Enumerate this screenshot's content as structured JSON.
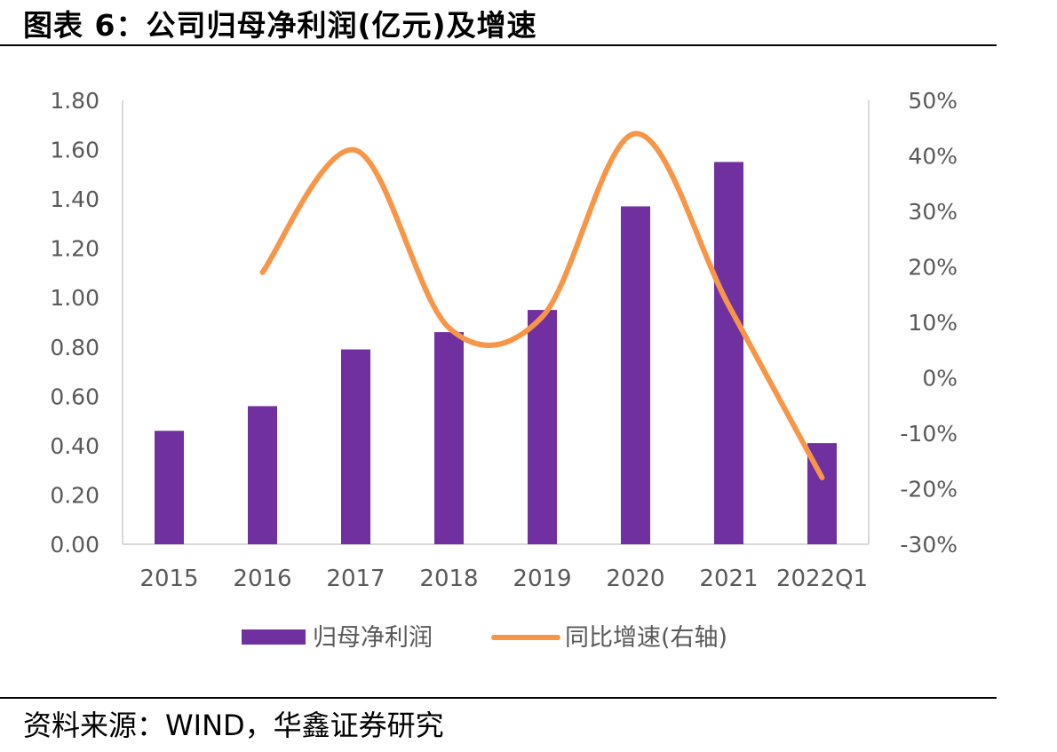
{
  "header": {
    "title": "图表 6：公司归母净利润(亿元)及增速"
  },
  "footer": {
    "source": "资料来源：WIND，华鑫证券研究"
  },
  "chart_data": {
    "type": "bar",
    "categories": [
      "2015",
      "2016",
      "2017",
      "2018",
      "2019",
      "2020",
      "2021",
      "2022Q1"
    ],
    "series": [
      {
        "name": "归母净利润",
        "type": "bar",
        "axis": "left",
        "color": "#7030A0",
        "values": [
          0.46,
          0.56,
          0.79,
          0.86,
          0.95,
          1.37,
          1.55,
          0.41
        ]
      },
      {
        "name": "同比增速(右轴)",
        "type": "line",
        "axis": "right",
        "color": "#F79646",
        "smooth": true,
        "values": [
          null,
          0.19,
          0.41,
          0.09,
          0.11,
          0.44,
          0.13,
          -0.18
        ]
      }
    ],
    "y_left": {
      "min": 0,
      "max": 1.8,
      "ticks": [
        "0.00",
        "0.20",
        "0.40",
        "0.60",
        "0.80",
        "1.00",
        "1.20",
        "1.40",
        "1.60",
        "1.80"
      ]
    },
    "y_right": {
      "min": -0.3,
      "max": 0.5,
      "ticks": [
        "-30%",
        "-20%",
        "-10%",
        "0%",
        "10%",
        "20%",
        "30%",
        "40%",
        "50%"
      ]
    },
    "legend": {
      "position": "bottom"
    },
    "grid": false
  }
}
